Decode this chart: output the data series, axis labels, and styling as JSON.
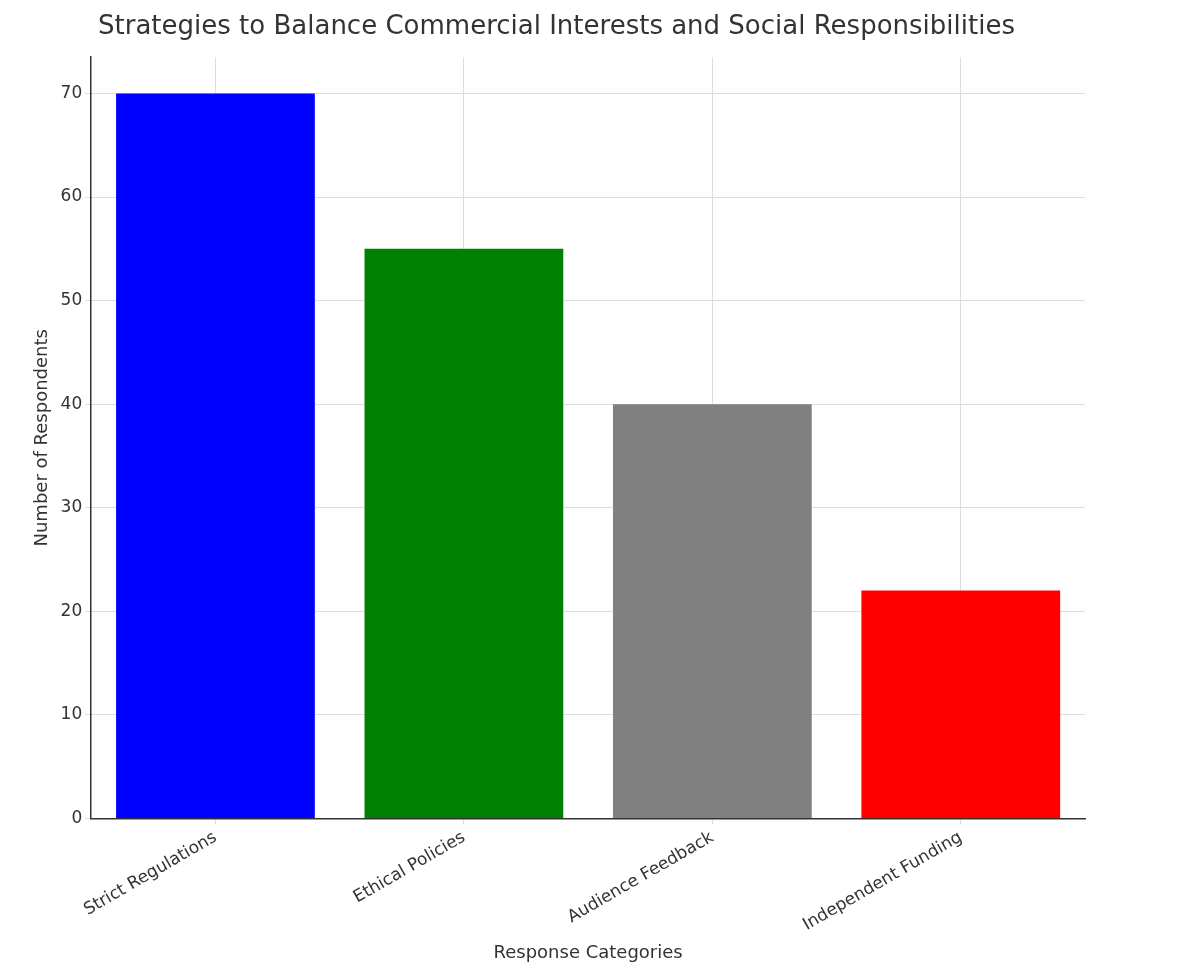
{
  "chart_data": {
    "type": "bar",
    "title": "Strategies to Balance Commercial Interests and Social Responsibilities",
    "xlabel": "Response Categories",
    "ylabel": "Number of Respondents",
    "categories": [
      "Strict Regulations",
      "Ethical Policies",
      "Audience Feedback",
      "Independent Funding"
    ],
    "values": [
      70,
      55,
      40,
      22
    ],
    "colors": [
      "#0000ff",
      "#008000",
      "#808080",
      "#ff0000"
    ],
    "ylim": [
      0,
      73.5
    ],
    "yticks": [
      0,
      10,
      20,
      30,
      40,
      50,
      60,
      70
    ],
    "grid": true
  }
}
